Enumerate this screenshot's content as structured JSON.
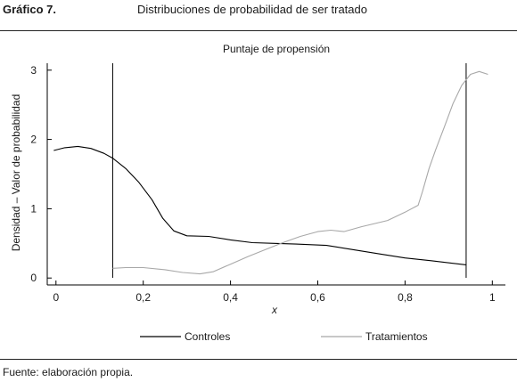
{
  "figure": {
    "label": "Gráfico 7.",
    "title": "Distribuciones de probabilidad de ser tratado",
    "source": "Fuente: elaboración propia."
  },
  "chart_data": {
    "type": "line",
    "title": "Puntaje de propensión",
    "xlabel": "x",
    "ylabel": "Densidad – Valor de probabilidad",
    "xlim": [
      -0.02,
      1.03
    ],
    "ylim": [
      -0.1,
      3.1
    ],
    "xticks": [
      0,
      0.2,
      0.4,
      0.6,
      0.8,
      1
    ],
    "xtick_labels": [
      "0",
      "0,2",
      "0,4",
      "0,6",
      "0,8",
      "1"
    ],
    "yticks": [
      0,
      1,
      2,
      3
    ],
    "ytick_labels": [
      "0",
      "1",
      "2",
      "3"
    ],
    "vlines": [
      0.13,
      0.94
    ],
    "legend_position": "bottom",
    "series": [
      {
        "name": "Controles",
        "color": "#000000",
        "points": [
          [
            -0.005,
            1.84
          ],
          [
            0.02,
            1.88
          ],
          [
            0.05,
            1.9
          ],
          [
            0.08,
            1.87
          ],
          [
            0.11,
            1.8
          ],
          [
            0.13,
            1.73
          ],
          [
            0.16,
            1.58
          ],
          [
            0.19,
            1.38
          ],
          [
            0.22,
            1.13
          ],
          [
            0.245,
            0.86
          ],
          [
            0.27,
            0.68
          ],
          [
            0.3,
            0.61
          ],
          [
            0.35,
            0.6
          ],
          [
            0.4,
            0.55
          ],
          [
            0.45,
            0.51
          ],
          [
            0.5,
            0.5
          ],
          [
            0.55,
            0.49
          ],
          [
            0.62,
            0.47
          ],
          [
            0.68,
            0.41
          ],
          [
            0.75,
            0.34
          ],
          [
            0.8,
            0.29
          ],
          [
            0.86,
            0.25
          ],
          [
            0.94,
            0.19
          ]
        ]
      },
      {
        "name": "Tratamientos",
        "color": "#a8a8a8",
        "points": [
          [
            0.13,
            0.14
          ],
          [
            0.16,
            0.15
          ],
          [
            0.2,
            0.15
          ],
          [
            0.25,
            0.12
          ],
          [
            0.29,
            0.08
          ],
          [
            0.33,
            0.06
          ],
          [
            0.36,
            0.09
          ],
          [
            0.4,
            0.2
          ],
          [
            0.44,
            0.31
          ],
          [
            0.48,
            0.41
          ],
          [
            0.52,
            0.51
          ],
          [
            0.56,
            0.6
          ],
          [
            0.6,
            0.67
          ],
          [
            0.63,
            0.69
          ],
          [
            0.66,
            0.67
          ],
          [
            0.7,
            0.74
          ],
          [
            0.76,
            0.83
          ],
          [
            0.8,
            0.95
          ],
          [
            0.83,
            1.05
          ],
          [
            0.84,
            1.25
          ],
          [
            0.855,
            1.58
          ],
          [
            0.87,
            1.85
          ],
          [
            0.89,
            2.18
          ],
          [
            0.91,
            2.52
          ],
          [
            0.93,
            2.78
          ],
          [
            0.95,
            2.94
          ],
          [
            0.97,
            2.98
          ],
          [
            0.99,
            2.94
          ]
        ]
      }
    ]
  }
}
